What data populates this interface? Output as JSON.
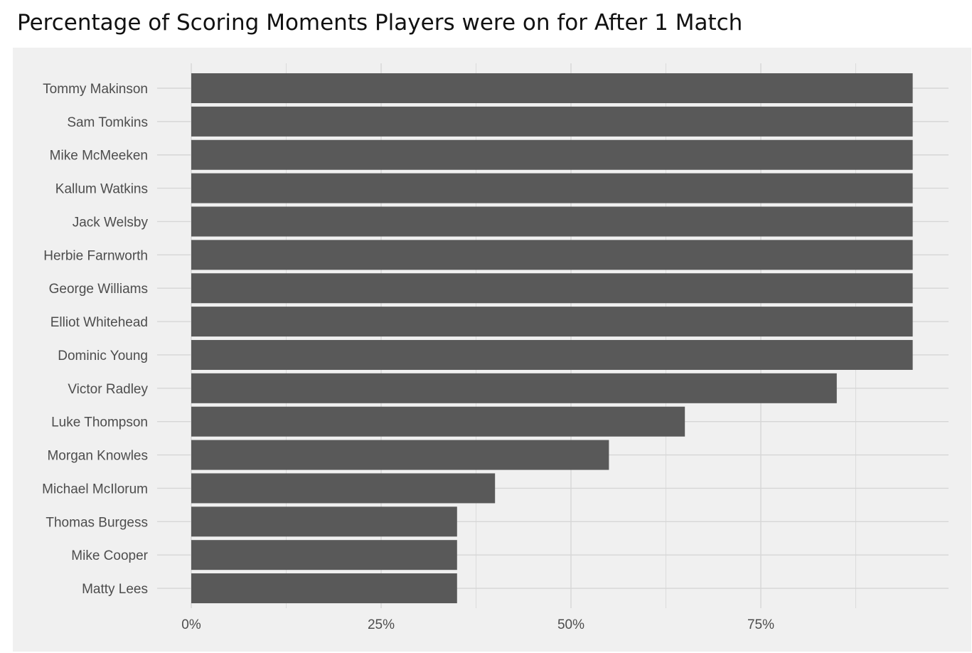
{
  "chart_data": {
    "type": "bar",
    "orientation": "horizontal",
    "title": "Percentage of Scoring Moments Players were on for After 1 Match",
    "xlabel": "",
    "ylabel": "",
    "categories": [
      "Tommy Makinson",
      "Sam Tomkins",
      "Mike McMeeken",
      "Kallum Watkins",
      "Jack Welsby",
      "Herbie Farnworth",
      "George Williams",
      "Elliot Whitehead",
      "Dominic Young",
      "Victor Radley",
      "Luke Thompson",
      "Morgan Knowles",
      "Michael McIlorum",
      "Thomas Burgess",
      "Mike Cooper",
      "Matty Lees"
    ],
    "values": [
      95,
      95,
      95,
      95,
      95,
      95,
      95,
      95,
      95,
      85,
      65,
      55,
      40,
      35,
      35,
      35
    ],
    "xlim": [
      0,
      100
    ],
    "xticks": [
      0,
      25,
      50,
      75
    ],
    "xtick_labels": [
      "0%",
      "25%",
      "50%",
      "75%"
    ],
    "bar_color": "#595959",
    "background": "#f0f0f0",
    "grid": true,
    "legend": "none"
  }
}
